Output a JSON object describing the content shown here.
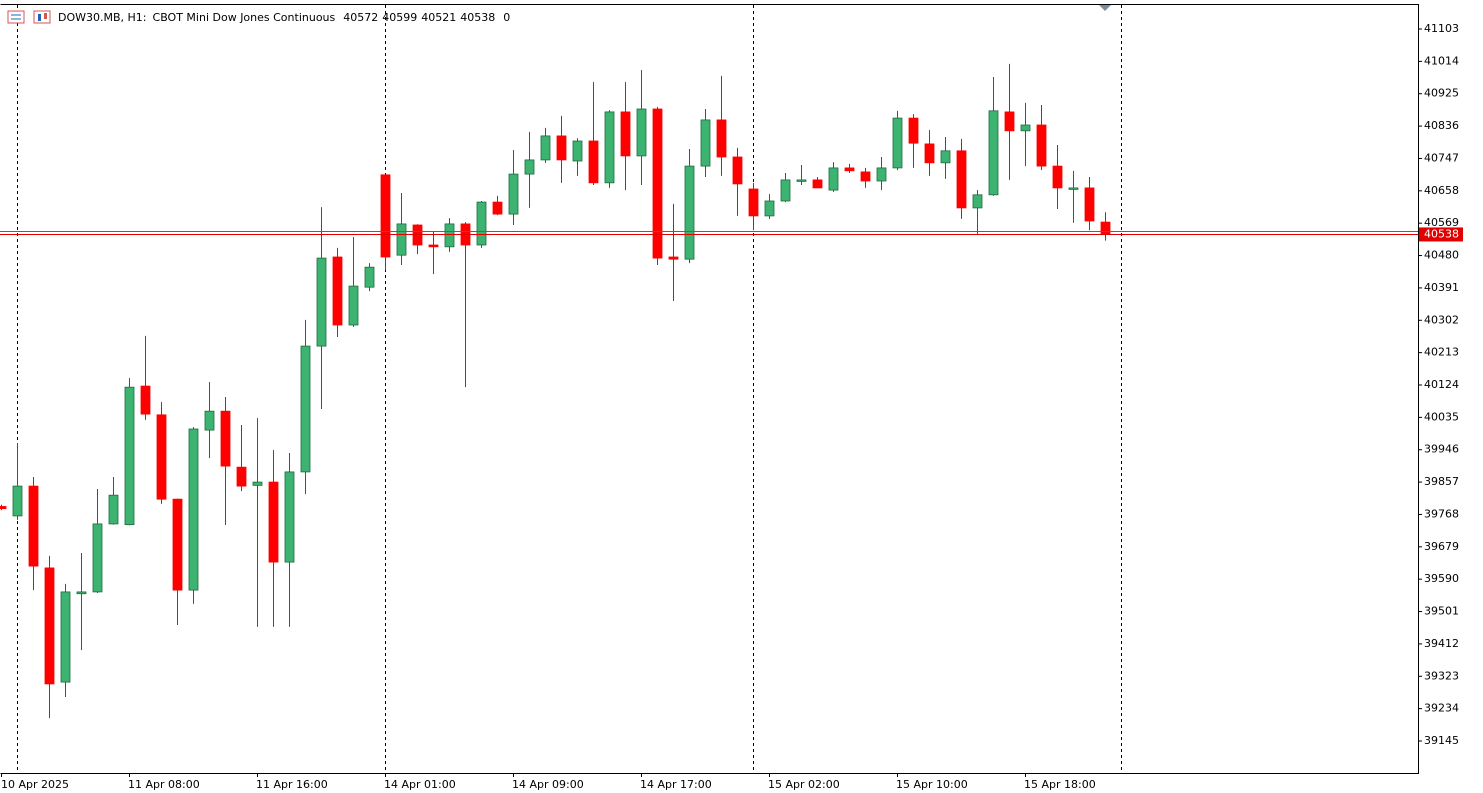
{
  "chart_data": {
    "type": "candlestick",
    "title": "DOW30.MB, H1:",
    "subtitle": "CBOT Mini Dow Jones Continuous",
    "header_volume": 0,
    "up_color": "#3cb371",
    "down_color": "#ff0000",
    "categories": [
      "10 Apr 2025",
      null,
      null,
      null,
      null,
      null,
      null,
      null,
      "11 Apr 08:00",
      null,
      null,
      null,
      null,
      null,
      null,
      null,
      "11 Apr 16:00",
      null,
      null,
      null,
      null,
      null,
      null,
      null,
      "14 Apr 01:00",
      null,
      null,
      null,
      null,
      null,
      null,
      null,
      "14 Apr 09:00",
      null,
      null,
      null,
      null,
      null,
      null,
      null,
      "14 Apr 17:00",
      null,
      null,
      null,
      null,
      null,
      null,
      null,
      "15 Apr 02:00",
      null,
      null,
      null,
      null,
      null,
      null,
      null,
      "15 Apr 10:00",
      null,
      null,
      null,
      null,
      null,
      null,
      null,
      "15 Apr 18:00",
      null,
      null,
      null,
      null,
      null
    ],
    "open": [
      39790,
      39764,
      39846,
      39621,
      39307,
      39550,
      39555,
      39742,
      39740,
      40121,
      40042,
      39810,
      39560,
      40000,
      40052,
      39898,
      39848,
      39857,
      39637,
      39885,
      40231,
      40476,
      40289,
      40393,
      40702,
      40481,
      40564,
      40509,
      40504,
      40567,
      40509,
      40627,
      40594,
      40704,
      40743,
      40809,
      40740,
      40795,
      40680,
      40875,
      40754,
      40883,
      40476,
      40470,
      40726,
      40853,
      40751,
      40663,
      40589,
      40630,
      40685,
      40688,
      40660,
      40721,
      40710,
      40685,
      40721,
      40858,
      40787,
      40735,
      40768,
      40611,
      40647,
      40875,
      40823,
      40839,
      40726,
      40663,
      40666,
      40572
    ],
    "high": [
      39795,
      39964,
      39871,
      39654,
      39577,
      39662,
      39838,
      39871,
      40143,
      40259,
      40077,
      39812,
      40008,
      40132,
      40091,
      40014,
      40033,
      39945,
      39937,
      40303,
      40613,
      40501,
      40531,
      40459,
      40702,
      40652,
      40566,
      40545,
      40583,
      40572,
      40630,
      40644,
      40770,
      40820,
      40831,
      40864,
      40803,
      40957,
      40880,
      40957,
      40990,
      40889,
      40622,
      40773,
      40883,
      40974,
      40776,
      40680,
      40649,
      40707,
      40729,
      40696,
      40737,
      40732,
      40721,
      40751,
      40878,
      40869,
      40825,
      40806,
      40801,
      40660,
      40971,
      41007,
      40900,
      40894,
      40784,
      40713,
      40696,
      40599
    ],
    "low": [
      39780,
      39753,
      39560,
      39208,
      39266,
      39395,
      39552,
      39740,
      39738,
      40028,
      39797,
      39464,
      39522,
      39923,
      39739,
      39832,
      39459,
      39459,
      39459,
      39824,
      40058,
      40256,
      40284,
      40382,
      40440,
      40454,
      40484,
      40429,
      40490,
      40118,
      40501,
      40591,
      40564,
      40611,
      40735,
      40680,
      40699,
      40674,
      40666,
      40660,
      40674,
      40454,
      40355,
      40459,
      40696,
      40699,
      40589,
      40550,
      40581,
      40627,
      40674,
      40666,
      40655,
      40707,
      40666,
      40660,
      40715,
      40721,
      40699,
      40691,
      40581,
      40539,
      40644,
      40688,
      40726,
      40715,
      40608,
      40570,
      40550,
      40521
    ],
    "close": [
      39784,
      39846,
      39626,
      39302,
      39555,
      39555,
      39742,
      39821,
      40118,
      40044,
      39810,
      39560,
      40003,
      40052,
      39901,
      39846,
      39857,
      39637,
      39885,
      40231,
      40473,
      40289,
      40396,
      40448,
      40476,
      40567,
      40509,
      40504,
      40567,
      40509,
      40627,
      40594,
      40704,
      40743,
      40809,
      40743,
      40795,
      40680,
      40875,
      40754,
      40883,
      40473,
      40470,
      40726,
      40853,
      40751,
      40677,
      40589,
      40630,
      40688,
      40688,
      40666,
      40721,
      40713,
      40685,
      40721,
      40858,
      40789,
      40735,
      40768,
      40611,
      40647,
      40878,
      40823,
      40839,
      40726,
      40666,
      40666,
      40575,
      40538
    ],
    "current_price": 40538,
    "ylim": [
      39057,
      41169
    ],
    "yticks": [
      39145,
      39234,
      39323,
      39412,
      39501,
      39590,
      39679,
      39768,
      39857,
      39946,
      40035,
      40124,
      40213,
      40302,
      40391,
      40480,
      40569,
      40658,
      40747,
      40836,
      40925,
      41014,
      41103
    ]
  }
}
